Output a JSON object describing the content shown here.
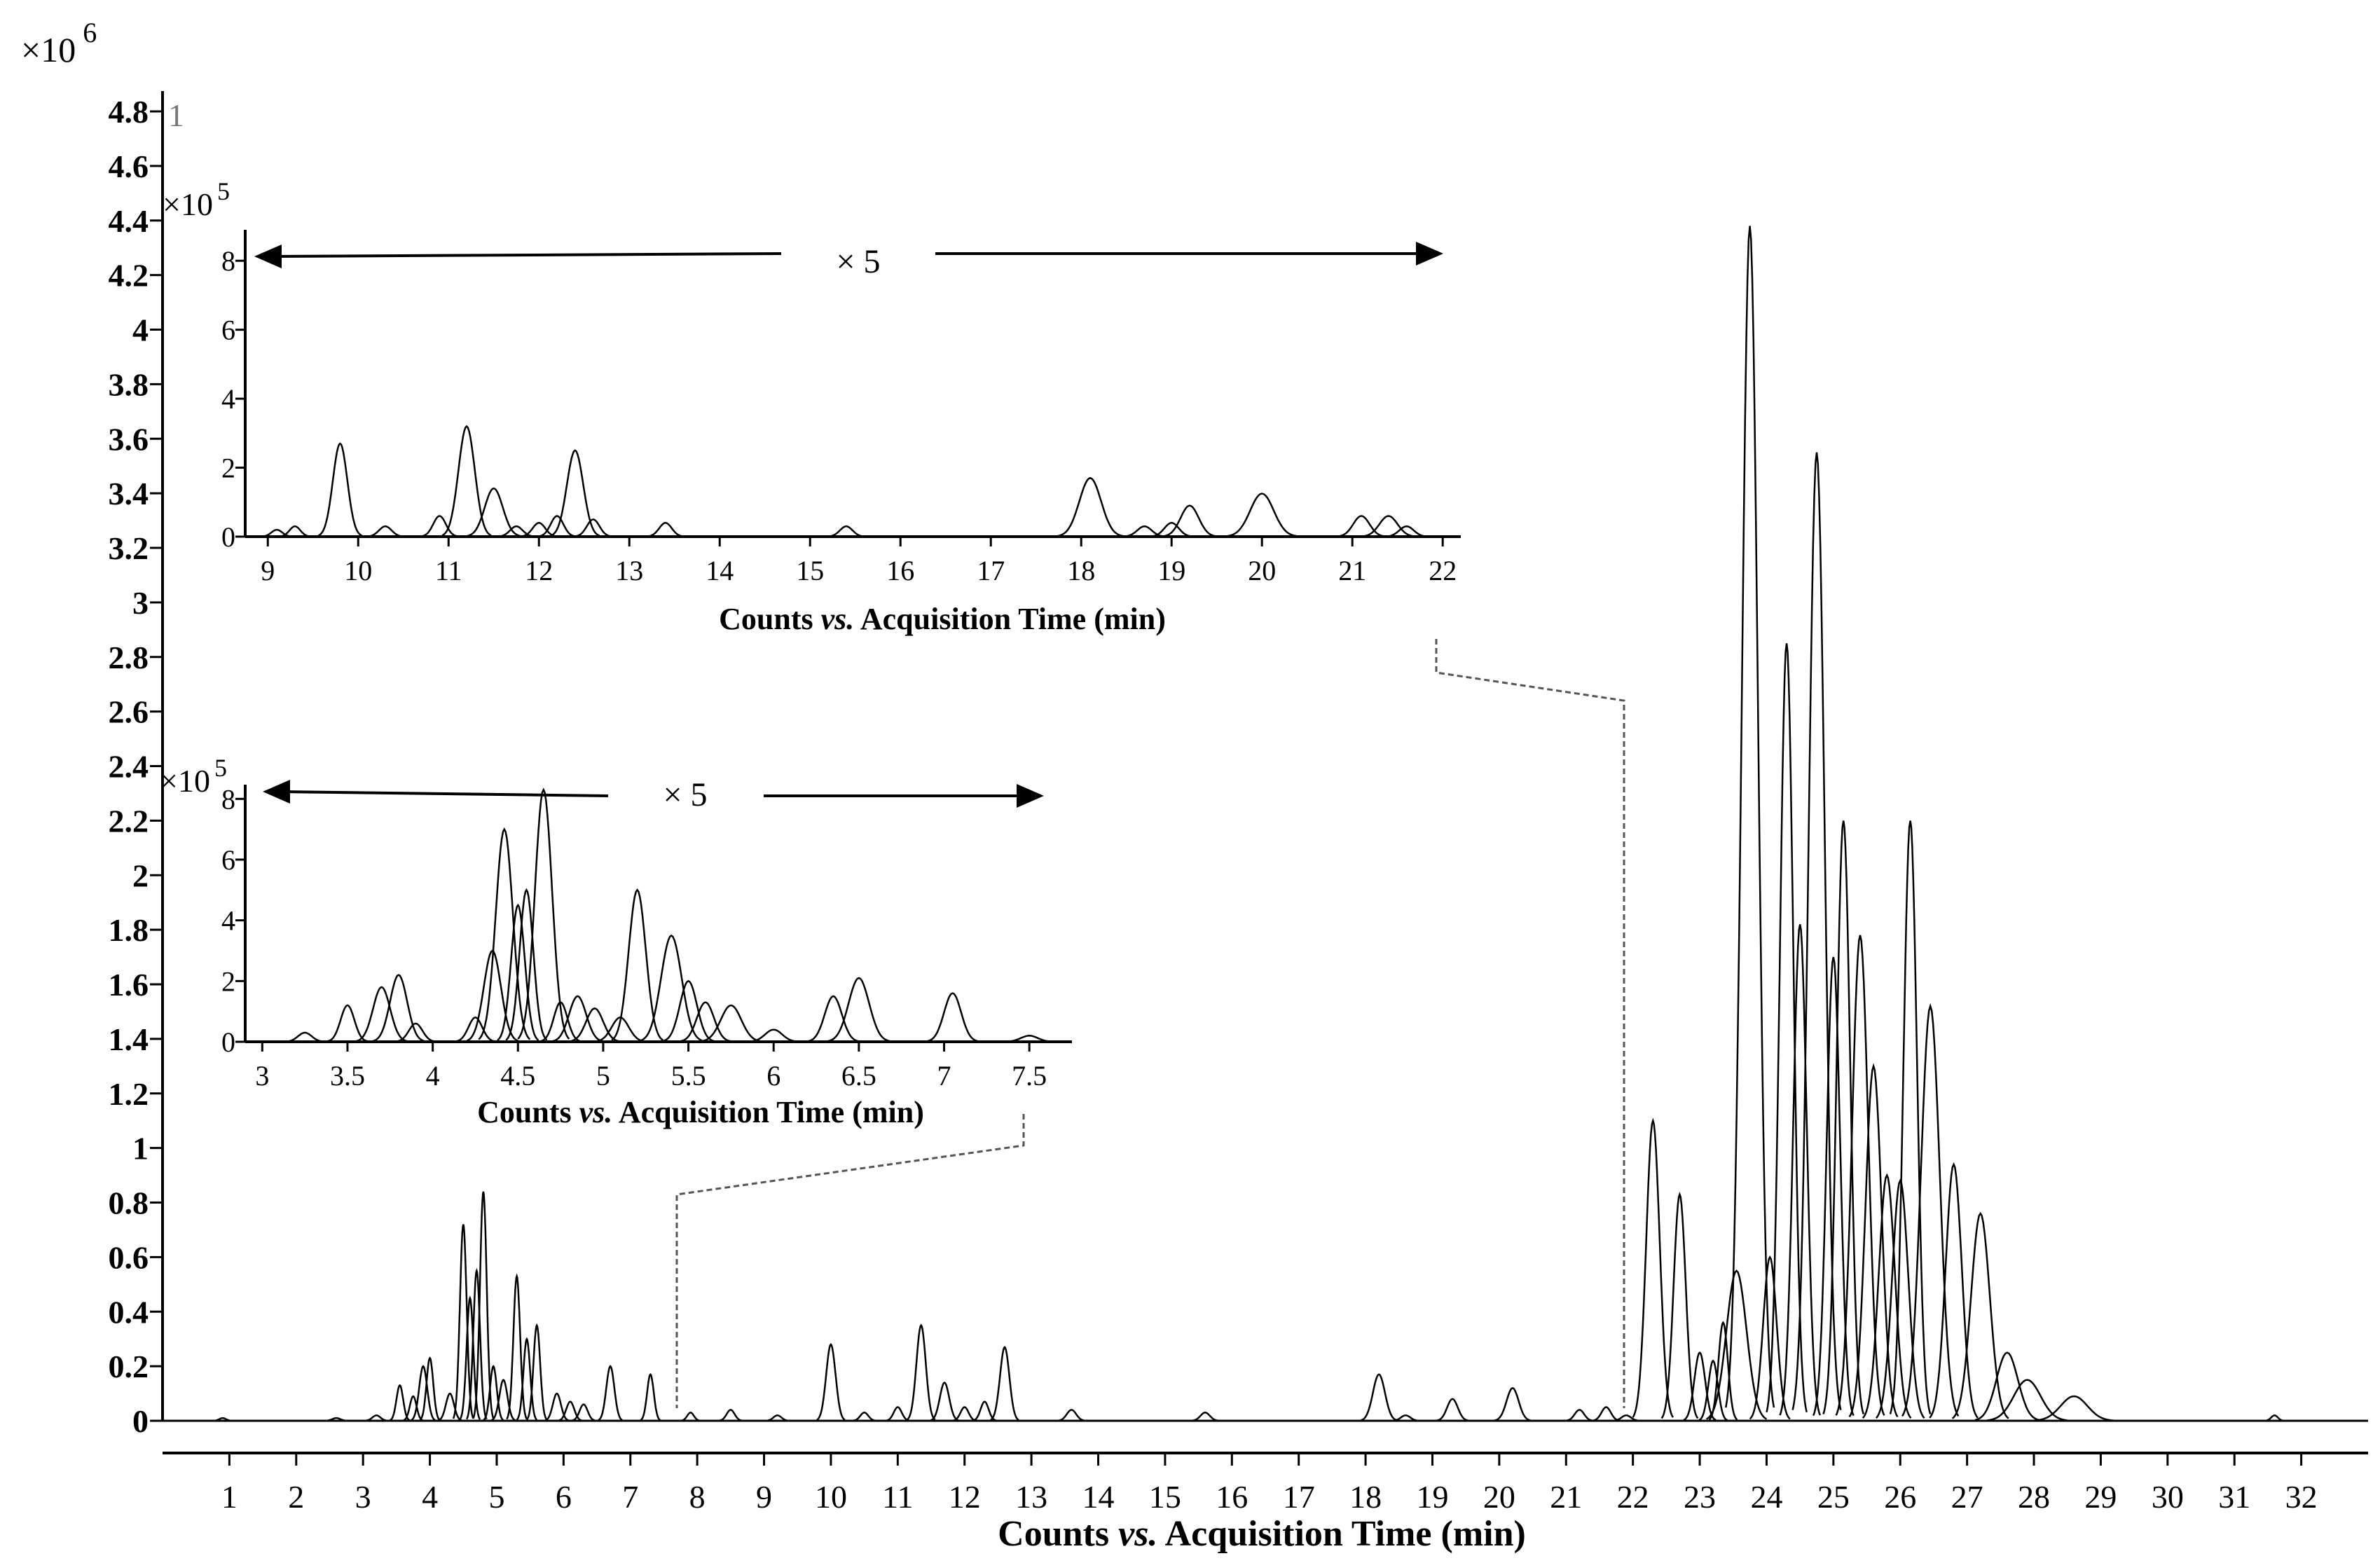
{
  "chart_data": [
    {
      "name": "main",
      "type": "line",
      "title": "",
      "scale_label": "×10",
      "scale_exp": "6",
      "panel_label": "1",
      "xlabel_pre": "Counts ",
      "xlabel_em": "vs.",
      "xlabel_post": " Acquisition Time (min)",
      "ylabel": "",
      "xlim": [
        0,
        33
      ],
      "ylim": [
        0,
        4.8
      ],
      "x_ticks": [
        "1",
        "2",
        "3",
        "4",
        "5",
        "6",
        "7",
        "8",
        "9",
        "10",
        "11",
        "12",
        "13",
        "14",
        "15",
        "16",
        "17",
        "18",
        "19",
        "20",
        "21",
        "22",
        "23",
        "24",
        "25",
        "26",
        "27",
        "28",
        "29",
        "30",
        "31",
        "32"
      ],
      "y_ticks": [
        "0",
        "0.2",
        "0.4",
        "0.6",
        "0.8",
        "1",
        "1.2",
        "1.4",
        "1.6",
        "1.8",
        "2",
        "2.2",
        "2.4",
        "2.6",
        "2.8",
        "3",
        "3.2",
        "3.4",
        "3.6",
        "3.8",
        "4",
        "4.2",
        "4.4",
        "4.6",
        "4.8"
      ],
      "peaks": [
        [
          0.9,
          0.01,
          0.05
        ],
        [
          2.6,
          0.01,
          0.06
        ],
        [
          3.2,
          0.02,
          0.06
        ],
        [
          3.55,
          0.13,
          0.05
        ],
        [
          3.75,
          0.09,
          0.05
        ],
        [
          3.9,
          0.2,
          0.06
        ],
        [
          4.0,
          0.23,
          0.05
        ],
        [
          4.3,
          0.1,
          0.06
        ],
        [
          4.5,
          0.72,
          0.05
        ],
        [
          4.6,
          0.45,
          0.05
        ],
        [
          4.7,
          0.55,
          0.05
        ],
        [
          4.8,
          0.84,
          0.05
        ],
        [
          4.95,
          0.2,
          0.05
        ],
        [
          5.1,
          0.15,
          0.06
        ],
        [
          5.3,
          0.53,
          0.05
        ],
        [
          5.45,
          0.3,
          0.05
        ],
        [
          5.6,
          0.35,
          0.05
        ],
        [
          5.9,
          0.1,
          0.06
        ],
        [
          6.1,
          0.07,
          0.06
        ],
        [
          6.3,
          0.06,
          0.06
        ],
        [
          6.7,
          0.2,
          0.06
        ],
        [
          7.3,
          0.17,
          0.05
        ],
        [
          7.9,
          0.03,
          0.05
        ],
        [
          8.5,
          0.04,
          0.06
        ],
        [
          9.2,
          0.02,
          0.06
        ],
        [
          10.0,
          0.28,
          0.07
        ],
        [
          10.5,
          0.03,
          0.06
        ],
        [
          11.0,
          0.05,
          0.06
        ],
        [
          11.35,
          0.35,
          0.07
        ],
        [
          11.7,
          0.14,
          0.07
        ],
        [
          12.0,
          0.05,
          0.06
        ],
        [
          12.3,
          0.07,
          0.06
        ],
        [
          12.6,
          0.27,
          0.07
        ],
        [
          13.6,
          0.04,
          0.07
        ],
        [
          15.6,
          0.03,
          0.07
        ],
        [
          18.2,
          0.17,
          0.09
        ],
        [
          18.6,
          0.02,
          0.07
        ],
        [
          19.3,
          0.08,
          0.08
        ],
        [
          20.2,
          0.12,
          0.09
        ],
        [
          21.2,
          0.04,
          0.07
        ],
        [
          21.6,
          0.05,
          0.07
        ],
        [
          21.9,
          0.02,
          0.07
        ],
        [
          22.3,
          1.1,
          0.1
        ],
        [
          22.7,
          0.83,
          0.09
        ],
        [
          23.0,
          0.25,
          0.08
        ],
        [
          23.2,
          0.22,
          0.07
        ],
        [
          23.35,
          0.36,
          0.07
        ],
        [
          23.55,
          0.55,
          0.15
        ],
        [
          23.75,
          4.38,
          0.12
        ],
        [
          24.05,
          0.6,
          0.1
        ],
        [
          24.3,
          2.85,
          0.1
        ],
        [
          24.5,
          1.82,
          0.1
        ],
        [
          24.75,
          3.55,
          0.12
        ],
        [
          25.0,
          1.7,
          0.1
        ],
        [
          25.15,
          2.2,
          0.1
        ],
        [
          25.4,
          1.78,
          0.12
        ],
        [
          25.6,
          1.3,
          0.12
        ],
        [
          25.8,
          0.9,
          0.12
        ],
        [
          26.0,
          0.88,
          0.12
        ],
        [
          26.15,
          2.2,
          0.1
        ],
        [
          26.45,
          1.52,
          0.14
        ],
        [
          26.8,
          0.94,
          0.12
        ],
        [
          27.2,
          0.76,
          0.14
        ],
        [
          27.6,
          0.25,
          0.16
        ],
        [
          27.9,
          0.15,
          0.2
        ],
        [
          28.6,
          0.09,
          0.2
        ],
        [
          31.6,
          0.02,
          0.05
        ]
      ]
    },
    {
      "name": "inset-top",
      "type": "line",
      "title": "",
      "scale_label": "×10",
      "scale_exp": "5",
      "multiplier": "× 5",
      "xlabel_pre": "Counts ",
      "xlabel_em": "vs.",
      "xlabel_post": " Acquisition Time (min)",
      "xlim": [
        8.75,
        22.2
      ],
      "ylim": [
        0,
        9
      ],
      "x_ticks": [
        "9",
        "10",
        "11",
        "12",
        "13",
        "14",
        "15",
        "16",
        "17",
        "18",
        "19",
        "20",
        "21",
        "22"
      ],
      "y_ticks": [
        "0",
        "2",
        "4",
        "6",
        "8"
      ],
      "peaks": [
        [
          9.1,
          0.2,
          0.06
        ],
        [
          9.3,
          0.3,
          0.06
        ],
        [
          9.8,
          2.7,
          0.08
        ],
        [
          10.3,
          0.3,
          0.07
        ],
        [
          10.9,
          0.6,
          0.07
        ],
        [
          11.2,
          3.2,
          0.09
        ],
        [
          11.5,
          1.4,
          0.1
        ],
        [
          11.75,
          0.3,
          0.07
        ],
        [
          12.0,
          0.4,
          0.07
        ],
        [
          12.2,
          0.6,
          0.07
        ],
        [
          12.4,
          2.5,
          0.09
        ],
        [
          12.6,
          0.5,
          0.07
        ],
        [
          13.4,
          0.4,
          0.07
        ],
        [
          15.4,
          0.3,
          0.07
        ],
        [
          18.1,
          1.7,
          0.12
        ],
        [
          18.7,
          0.3,
          0.08
        ],
        [
          19.0,
          0.4,
          0.08
        ],
        [
          19.2,
          0.9,
          0.1
        ],
        [
          20.0,
          1.25,
          0.13
        ],
        [
          21.1,
          0.6,
          0.09
        ],
        [
          21.4,
          0.6,
          0.1
        ],
        [
          21.6,
          0.3,
          0.08
        ]
      ]
    },
    {
      "name": "inset-bottom",
      "type": "line",
      "title": "",
      "scale_label": "×10",
      "scale_exp": "5",
      "multiplier": "× 5",
      "xlabel_pre": "Counts ",
      "xlabel_em": "vs.",
      "xlabel_post": " Acquisition Time (min)",
      "xlim": [
        2.9,
        7.75
      ],
      "ylim": [
        0,
        9
      ],
      "x_ticks": [
        "3",
        "3.5",
        "4",
        "4.5",
        "5",
        "5.5",
        "6",
        "6.5",
        "7",
        "7.5"
      ],
      "y_ticks": [
        "0",
        "2",
        "4",
        "6",
        "8"
      ],
      "peaks": [
        [
          3.25,
          0.3,
          0.04
        ],
        [
          3.5,
          1.2,
          0.04
        ],
        [
          3.7,
          1.8,
          0.05
        ],
        [
          3.8,
          2.2,
          0.05
        ],
        [
          3.9,
          0.6,
          0.04
        ],
        [
          4.25,
          0.8,
          0.04
        ],
        [
          4.35,
          3.0,
          0.05
        ],
        [
          4.42,
          7.0,
          0.05
        ],
        [
          4.5,
          4.5,
          0.04
        ],
        [
          4.55,
          5.0,
          0.04
        ],
        [
          4.65,
          8.3,
          0.05
        ],
        [
          4.75,
          1.3,
          0.04
        ],
        [
          4.85,
          1.5,
          0.05
        ],
        [
          4.95,
          1.1,
          0.05
        ],
        [
          5.1,
          0.8,
          0.05
        ],
        [
          5.2,
          5.0,
          0.05
        ],
        [
          5.4,
          3.5,
          0.06
        ],
        [
          5.5,
          2.0,
          0.05
        ],
        [
          5.6,
          1.3,
          0.05
        ],
        [
          5.75,
          1.2,
          0.06
        ],
        [
          6.0,
          0.4,
          0.05
        ],
        [
          6.35,
          1.5,
          0.05
        ],
        [
          6.5,
          2.1,
          0.06
        ],
        [
          7.05,
          1.6,
          0.05
        ],
        [
          7.5,
          0.2,
          0.05
        ]
      ]
    }
  ]
}
